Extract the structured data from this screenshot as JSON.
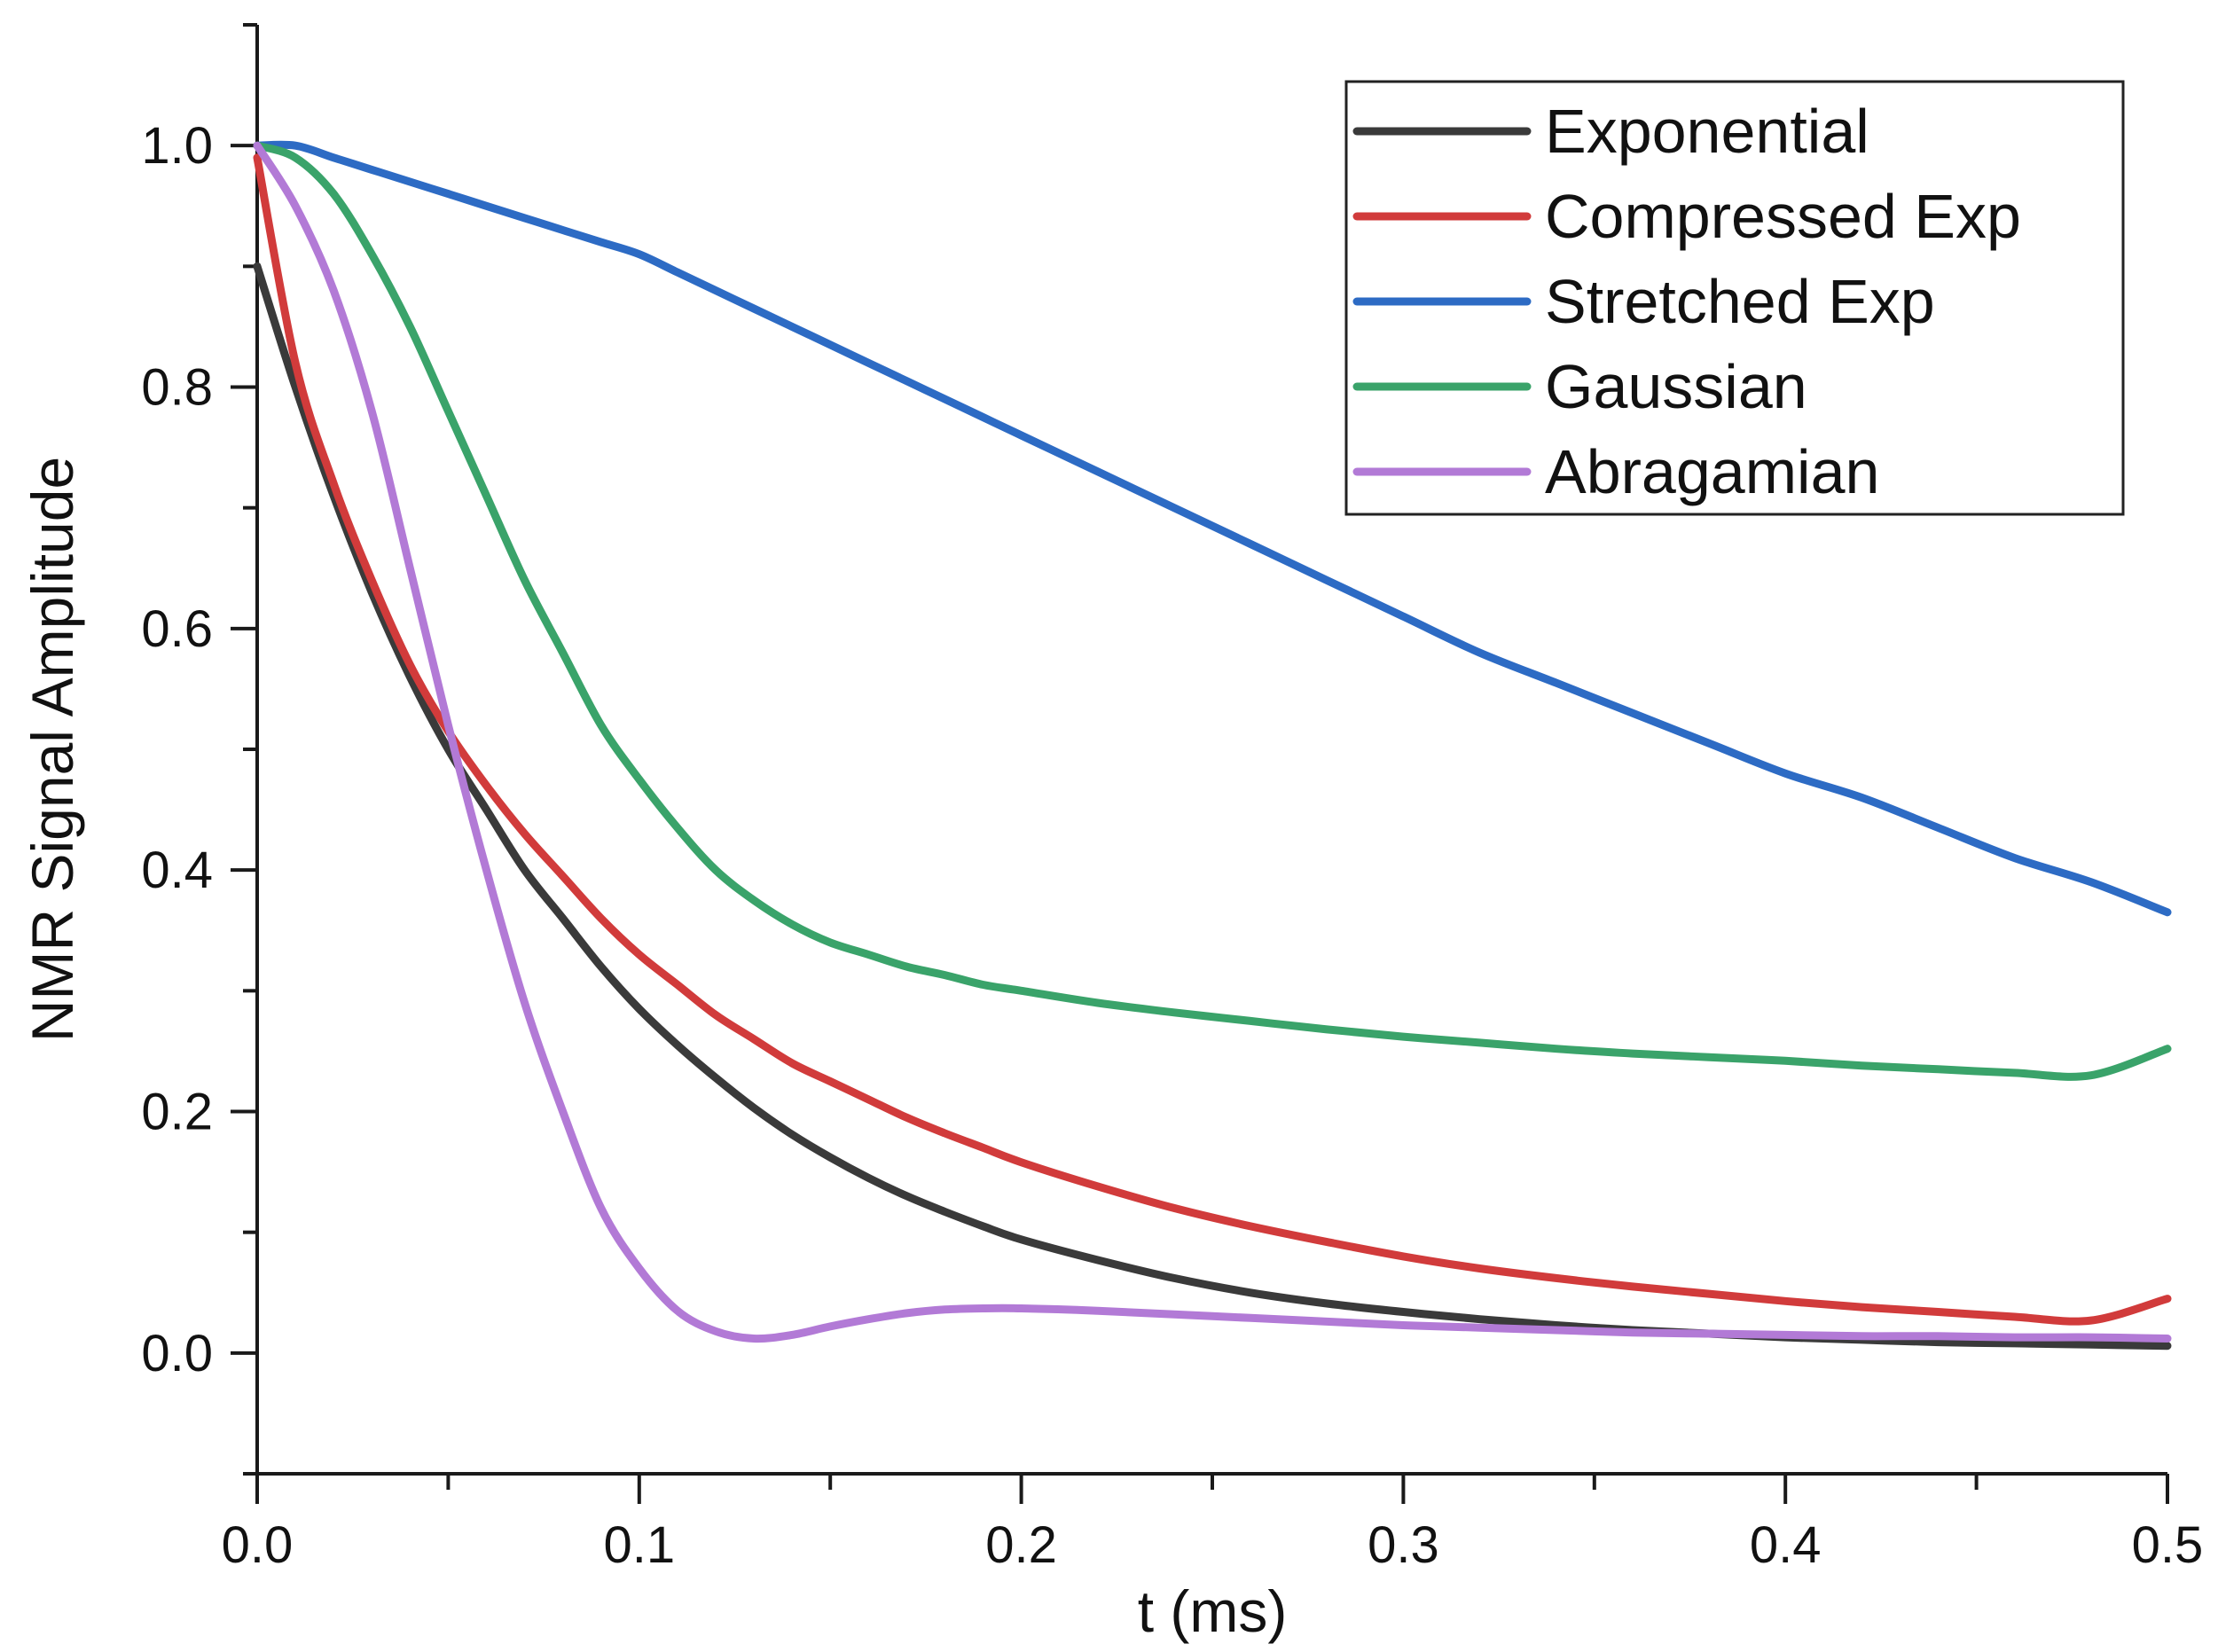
{
  "chart_data": {
    "type": "line",
    "title": "",
    "xlabel": "t (ms)",
    "ylabel": "NMR Signal Amplitude",
    "xlim": [
      0,
      0.5
    ],
    "ylim": [
      -0.1,
      1.1
    ],
    "x_ticks": [
      0.0,
      0.1,
      0.2,
      0.3,
      0.4,
      0.5
    ],
    "x_tick_labels": [
      "0.0",
      "0.1",
      "0.2",
      "0.3",
      "0.4",
      "0.5"
    ],
    "y_ticks": [
      0.0,
      0.2,
      0.4,
      0.6,
      0.8,
      1.0
    ],
    "y_tick_labels": [
      "0.0",
      "0.2",
      "0.4",
      "0.6",
      "0.8",
      "1.0"
    ],
    "grid": false,
    "legend_position": "top-right",
    "x": [
      0.0,
      0.01,
      0.02,
      0.03,
      0.04,
      0.05,
      0.06,
      0.07,
      0.08,
      0.09,
      0.1,
      0.11,
      0.12,
      0.13,
      0.14,
      0.15,
      0.16,
      0.17,
      0.18,
      0.19,
      0.2,
      0.22,
      0.24,
      0.26,
      0.28,
      0.3,
      0.32,
      0.34,
      0.36,
      0.38,
      0.4,
      0.42,
      0.44,
      0.46,
      0.48,
      0.5
    ],
    "series": [
      {
        "name": "Exponential",
        "color": "#3a3a3a",
        "values": [
          0.9,
          0.8,
          0.71,
          0.63,
          0.56,
          0.5,
          0.45,
          0.4,
          0.36,
          0.32,
          0.285,
          0.255,
          0.228,
          0.203,
          0.181,
          0.162,
          0.145,
          0.13,
          0.117,
          0.105,
          0.094,
          0.077,
          0.062,
          0.05,
          0.041,
          0.034,
          0.028,
          0.023,
          0.019,
          0.016,
          0.013,
          0.011,
          0.009,
          0.008,
          0.007,
          0.006
        ]
      },
      {
        "name": "Compressed Exp",
        "color": "#d13b3b",
        "values": [
          0.99,
          0.82,
          0.72,
          0.64,
          0.57,
          0.515,
          0.47,
          0.43,
          0.395,
          0.36,
          0.33,
          0.305,
          0.28,
          0.26,
          0.24,
          0.225,
          0.21,
          0.195,
          0.182,
          0.17,
          0.158,
          0.138,
          0.12,
          0.105,
          0.092,
          0.08,
          0.07,
          0.062,
          0.055,
          0.049,
          0.043,
          0.038,
          0.034,
          0.03,
          0.027,
          0.045
        ]
      },
      {
        "name": "Stretched Exp",
        "color": "#2d6bc4",
        "values": [
          1.0,
          1.0,
          0.99,
          0.98,
          0.97,
          0.96,
          0.95,
          0.94,
          0.93,
          0.92,
          0.91,
          0.895,
          0.88,
          0.865,
          0.85,
          0.835,
          0.82,
          0.805,
          0.79,
          0.775,
          0.76,
          0.73,
          0.7,
          0.67,
          0.64,
          0.61,
          0.58,
          0.555,
          0.53,
          0.505,
          0.48,
          0.46,
          0.435,
          0.41,
          0.39,
          0.365
        ]
      },
      {
        "name": "Gaussian",
        "color": "#3aa36a",
        "values": [
          1.0,
          0.99,
          0.96,
          0.91,
          0.85,
          0.78,
          0.71,
          0.64,
          0.58,
          0.52,
          0.475,
          0.435,
          0.4,
          0.375,
          0.355,
          0.34,
          0.33,
          0.32,
          0.313,
          0.305,
          0.3,
          0.29,
          0.282,
          0.275,
          0.268,
          0.262,
          0.257,
          0.252,
          0.248,
          0.245,
          0.242,
          0.238,
          0.235,
          0.232,
          0.23,
          0.252
        ]
      },
      {
        "name": "Abragamian",
        "color": "#b27ad6",
        "values": [
          1.0,
          0.95,
          0.88,
          0.78,
          0.65,
          0.52,
          0.4,
          0.29,
          0.2,
          0.12,
          0.07,
          0.035,
          0.018,
          0.012,
          0.015,
          0.022,
          0.028,
          0.033,
          0.036,
          0.037,
          0.037,
          0.035,
          0.032,
          0.029,
          0.026,
          0.023,
          0.021,
          0.019,
          0.017,
          0.016,
          0.015,
          0.014,
          0.014,
          0.013,
          0.013,
          0.012
        ]
      }
    ]
  }
}
